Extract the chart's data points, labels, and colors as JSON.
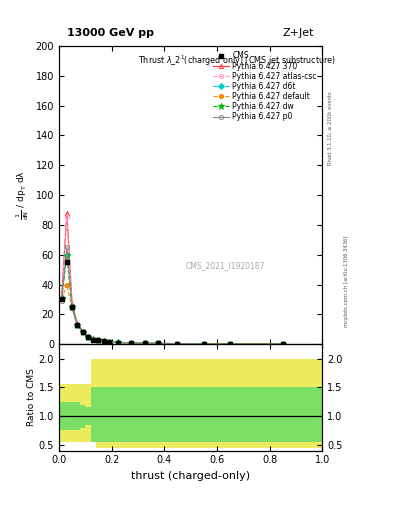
{
  "title_top": "13000 GeV pp",
  "title_right": "Z+Jet",
  "plot_title": "Thrust $\\lambda$_2$^1$(charged only) (CMS jet substructure)",
  "xlabel": "thrust (charged-only)",
  "ylabel_ratio": "Ratio to CMS",
  "annotation": "CMS_2021_I1920187",
  "right_label_top": "Rivet 3.1.10, ≥ 200k events",
  "right_label_bottom": "mcplots.cern.ch [arXiv:1306.3436]",
  "ylim_main": [
    0,
    200
  ],
  "ylim_ratio": [
    0.4,
    2.25
  ],
  "xlim": [
    0,
    1
  ],
  "yticks_main": [
    0,
    20,
    40,
    60,
    80,
    100,
    120,
    140,
    160,
    180,
    200
  ],
  "yticks_ratio": [
    0.5,
    1.0,
    1.5,
    2.0
  ],
  "lines": [
    {
      "label": "CMS",
      "color": "#000000",
      "marker": "s",
      "linestyle": "none",
      "filled": true
    },
    {
      "label": "Pythia 6.427 370",
      "color": "#ff3333",
      "marker": "^",
      "linestyle": "-",
      "filled": false
    },
    {
      "label": "Pythia 6.427 atlas-csc",
      "color": "#ff99cc",
      "marker": "o",
      "linestyle": "--",
      "filled": false
    },
    {
      "label": "Pythia 6.427 d6t",
      "color": "#00cccc",
      "marker": "D",
      "linestyle": "--",
      "filled": true
    },
    {
      "label": "Pythia 6.427 default",
      "color": "#ff8800",
      "marker": "o",
      "linestyle": "--",
      "filled": true
    },
    {
      "label": "Pythia 6.427 dw",
      "color": "#00bb00",
      "marker": "*",
      "linestyle": "--",
      "filled": true
    },
    {
      "label": "Pythia 6.427 p0",
      "color": "#888888",
      "marker": "o",
      "linestyle": "-",
      "filled": false
    }
  ],
  "thrust_bins": [
    0.0,
    0.02,
    0.04,
    0.06,
    0.08,
    0.1,
    0.12,
    0.14,
    0.16,
    0.18,
    0.2,
    0.25,
    0.3,
    0.35,
    0.4,
    0.5,
    0.6,
    0.7,
    1.0
  ],
  "cms_vals": [
    30,
    55,
    25,
    13,
    8,
    5,
    3,
    2.5,
    2,
    1.5,
    1,
    0.8,
    0.6,
    0.5,
    0.3,
    0.2,
    0.15,
    0.1
  ],
  "pythia_370_vals": [
    32,
    88,
    27,
    14,
    9,
    5.5,
    3.5,
    2.8,
    2.2,
    1.7,
    1.2,
    0.9,
    0.65,
    0.5,
    0.35,
    0.22,
    0.15,
    0.1
  ],
  "pythia_atlas_vals": [
    31,
    85,
    26,
    13.5,
    8.5,
    5.2,
    3.3,
    2.7,
    2.1,
    1.6,
    1.1,
    0.85,
    0.62,
    0.48,
    0.33,
    0.21,
    0.14,
    0.09
  ],
  "pythia_d6t_vals": [
    31,
    60,
    25,
    13,
    8.2,
    5.1,
    3.2,
    2.6,
    2.0,
    1.55,
    1.1,
    0.82,
    0.6,
    0.47,
    0.32,
    0.2,
    0.13,
    0.09
  ],
  "pythia_default_vals": [
    30,
    40,
    24,
    12.5,
    8.0,
    5.0,
    3.1,
    2.5,
    1.9,
    1.5,
    1.05,
    0.8,
    0.58,
    0.45,
    0.31,
    0.19,
    0.13,
    0.08
  ],
  "pythia_dw_vals": [
    31,
    60,
    25,
    13,
    8.2,
    5.1,
    3.2,
    2.6,
    2.0,
    1.55,
    1.1,
    0.82,
    0.6,
    0.47,
    0.32,
    0.2,
    0.13,
    0.09
  ],
  "pythia_p0_vals": [
    29,
    65,
    24,
    12.5,
    7.8,
    4.9,
    3.1,
    2.4,
    1.9,
    1.45,
    1.05,
    0.78,
    0.58,
    0.44,
    0.3,
    0.19,
    0.12,
    0.08
  ],
  "ratio_yellow_lo": [
    0.55,
    0.55,
    0.55,
    0.55,
    0.55,
    0.55,
    0.55,
    0.45,
    0.45,
    0.45,
    0.45,
    0.45,
    0.45,
    0.45,
    0.45,
    0.45,
    0.45,
    0.45
  ],
  "ratio_yellow_hi": [
    1.55,
    1.55,
    1.55,
    1.55,
    1.55,
    1.55,
    2.0,
    2.0,
    2.0,
    2.0,
    2.0,
    2.0,
    2.0,
    2.0,
    2.0,
    2.0,
    2.0,
    2.0
  ],
  "ratio_green_lo": [
    0.75,
    0.75,
    0.75,
    0.75,
    0.8,
    0.85,
    0.55,
    0.55,
    0.55,
    0.55,
    0.55,
    0.55,
    0.55,
    0.55,
    0.55,
    0.55,
    0.55,
    0.55
  ],
  "ratio_green_hi": [
    1.25,
    1.25,
    1.25,
    1.25,
    1.2,
    1.15,
    1.5,
    1.5,
    1.5,
    1.5,
    1.5,
    1.5,
    1.5,
    1.5,
    1.5,
    1.5,
    1.5,
    1.5
  ]
}
